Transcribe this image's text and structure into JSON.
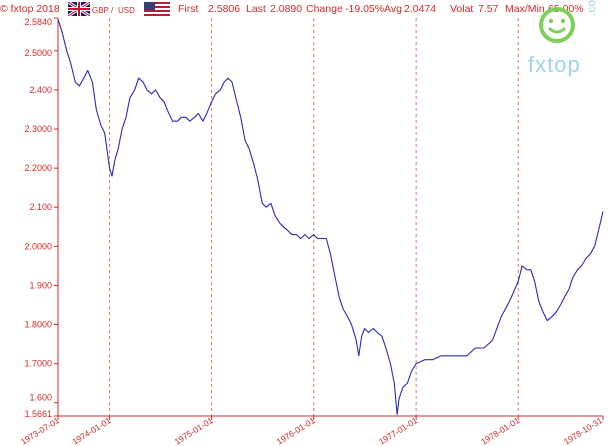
{
  "header": {
    "copyright": "© fxtop 2018",
    "pair_base": "GBP",
    "pair_sep": "/",
    "pair_quote": "USD",
    "first_label": "First",
    "first_value": "2.5806",
    "last_label": "Last",
    "last_value": "2.0890",
    "change_label": "Change",
    "change_value": "-19.05%",
    "avg_label": "Avg",
    "avg_value": "2.0474",
    "volat_label": "Volat",
    "volat_value": "7.57",
    "maxmin_label": "Max/Min",
    "maxmin_value": "65.00%"
  },
  "watermark": {
    "text": "fxtop",
    "suffix": ".com",
    "icon": "smiley-face-icon"
  },
  "colors": {
    "line": "#2a2ab8",
    "axis_text": "#d62828",
    "grid": "#e26a4a",
    "uk_flag_blue": "#012169",
    "uk_flag_red": "#c8102e",
    "us_flag_red": "#b22234",
    "us_flag_blue": "#3c3b6e",
    "watermark": "#9fd4e6",
    "watermark_green": "#7fd05a"
  },
  "chart_data": {
    "type": "line",
    "title": "",
    "xlabel": "",
    "ylabel": "",
    "ylim": [
      1.5661,
      2.584
    ],
    "y_ticks": [
      "1.5661",
      "1.600",
      "1.7000",
      "1.8000",
      "1.900",
      "2.0000",
      "2.100",
      "2.2000",
      "2.3000",
      "2.400",
      "2.5000",
      "2.5840"
    ],
    "y_tick_values": [
      1.5661,
      1.6,
      1.7,
      1.8,
      1.9,
      2.0,
      2.1,
      2.2,
      2.3,
      2.4,
      2.5,
      2.584
    ],
    "x_ticks": [
      "1973-07-01",
      "1974-01-01",
      "1975-01-01",
      "1976-01-01",
      "1977-01-01",
      "1978-01-01",
      "1978-10-31"
    ],
    "x_gridlines": [
      "1974-01-01",
      "1975-01-01",
      "1976-01-01",
      "1977-01-01",
      "1978-01-01"
    ],
    "grid": true,
    "series": [
      {
        "points": [
          [
            "1973-07-01",
            2.5806
          ],
          [
            "1973-07-15",
            2.55
          ],
          [
            "1973-08-01",
            2.5
          ],
          [
            "1973-08-15",
            2.47
          ],
          [
            "1973-09-01",
            2.42
          ],
          [
            "1973-09-15",
            2.41
          ],
          [
            "1973-10-01",
            2.43
          ],
          [
            "1973-10-15",
            2.45
          ],
          [
            "1973-11-01",
            2.42
          ],
          [
            "1973-11-15",
            2.35
          ],
          [
            "1973-12-01",
            2.31
          ],
          [
            "1973-12-15",
            2.29
          ],
          [
            "1974-01-01",
            2.2
          ],
          [
            "1974-01-10",
            2.18
          ],
          [
            "1974-01-20",
            2.22
          ],
          [
            "1974-02-01",
            2.25
          ],
          [
            "1974-02-15",
            2.3
          ],
          [
            "1974-03-01",
            2.33
          ],
          [
            "1974-03-15",
            2.38
          ],
          [
            "1974-04-01",
            2.4
          ],
          [
            "1974-04-15",
            2.43
          ],
          [
            "1974-05-01",
            2.42
          ],
          [
            "1974-05-15",
            2.4
          ],
          [
            "1974-06-01",
            2.39
          ],
          [
            "1974-06-15",
            2.4
          ],
          [
            "1974-07-01",
            2.38
          ],
          [
            "1974-07-15",
            2.37
          ],
          [
            "1974-08-01",
            2.34
          ],
          [
            "1974-08-15",
            2.32
          ],
          [
            "1974-09-01",
            2.32
          ],
          [
            "1974-09-15",
            2.33
          ],
          [
            "1974-10-01",
            2.33
          ],
          [
            "1974-10-15",
            2.32
          ],
          [
            "1974-11-01",
            2.33
          ],
          [
            "1974-11-15",
            2.34
          ],
          [
            "1974-12-01",
            2.32
          ],
          [
            "1974-12-15",
            2.34
          ],
          [
            "1975-01-01",
            2.37
          ],
          [
            "1975-01-15",
            2.39
          ],
          [
            "1975-02-01",
            2.4
          ],
          [
            "1975-02-15",
            2.42
          ],
          [
            "1975-03-01",
            2.43
          ],
          [
            "1975-03-15",
            2.42
          ],
          [
            "1975-04-01",
            2.37
          ],
          [
            "1975-04-15",
            2.33
          ],
          [
            "1975-05-01",
            2.27
          ],
          [
            "1975-05-15",
            2.25
          ],
          [
            "1975-06-01",
            2.21
          ],
          [
            "1975-06-15",
            2.17
          ],
          [
            "1975-07-01",
            2.11
          ],
          [
            "1975-07-15",
            2.1
          ],
          [
            "1975-08-01",
            2.11
          ],
          [
            "1975-08-15",
            2.08
          ],
          [
            "1975-09-01",
            2.06
          ],
          [
            "1975-09-15",
            2.05
          ],
          [
            "1975-10-01",
            2.04
          ],
          [
            "1975-10-15",
            2.03
          ],
          [
            "1975-11-01",
            2.03
          ],
          [
            "1975-11-15",
            2.02
          ],
          [
            "1975-12-01",
            2.03
          ],
          [
            "1975-12-15",
            2.02
          ],
          [
            "1976-01-01",
            2.03
          ],
          [
            "1976-01-15",
            2.02
          ],
          [
            "1976-02-01",
            2.02
          ],
          [
            "1976-02-15",
            2.02
          ],
          [
            "1976-03-01",
            1.98
          ],
          [
            "1976-03-15",
            1.93
          ],
          [
            "1976-04-01",
            1.87
          ],
          [
            "1976-04-15",
            1.84
          ],
          [
            "1976-05-01",
            1.82
          ],
          [
            "1976-05-15",
            1.8
          ],
          [
            "1976-06-01",
            1.76
          ],
          [
            "1976-06-10",
            1.72
          ],
          [
            "1976-06-20",
            1.77
          ],
          [
            "1976-07-01",
            1.79
          ],
          [
            "1976-07-15",
            1.78
          ],
          [
            "1976-08-01",
            1.79
          ],
          [
            "1976-08-15",
            1.78
          ],
          [
            "1976-09-01",
            1.77
          ],
          [
            "1976-09-15",
            1.74
          ],
          [
            "1976-10-01",
            1.7
          ],
          [
            "1976-10-15",
            1.65
          ],
          [
            "1976-10-25",
            1.57
          ],
          [
            "1976-11-01",
            1.61
          ],
          [
            "1976-11-15",
            1.64
          ],
          [
            "1976-12-01",
            1.65
          ],
          [
            "1976-12-15",
            1.68
          ],
          [
            "1977-01-01",
            1.7
          ],
          [
            "1977-02-01",
            1.71
          ],
          [
            "1977-03-01",
            1.71
          ],
          [
            "1977-04-01",
            1.72
          ],
          [
            "1977-05-01",
            1.72
          ],
          [
            "1977-06-01",
            1.72
          ],
          [
            "1977-07-01",
            1.72
          ],
          [
            "1977-08-01",
            1.74
          ],
          [
            "1977-09-01",
            1.74
          ],
          [
            "1977-10-01",
            1.76
          ],
          [
            "1977-11-01",
            1.82
          ],
          [
            "1977-12-01",
            1.86
          ],
          [
            "1978-01-01",
            1.91
          ],
          [
            "1978-01-15",
            1.95
          ],
          [
            "1978-02-01",
            1.94
          ],
          [
            "1978-02-15",
            1.94
          ],
          [
            "1978-03-01",
            1.91
          ],
          [
            "1978-03-15",
            1.86
          ],
          [
            "1978-04-01",
            1.83
          ],
          [
            "1978-04-15",
            1.81
          ],
          [
            "1978-05-01",
            1.82
          ],
          [
            "1978-05-15",
            1.83
          ],
          [
            "1978-06-01",
            1.85
          ],
          [
            "1978-06-15",
            1.87
          ],
          [
            "1978-07-01",
            1.89
          ],
          [
            "1978-07-15",
            1.92
          ],
          [
            "1978-08-01",
            1.94
          ],
          [
            "1978-08-15",
            1.95
          ],
          [
            "1978-09-01",
            1.97
          ],
          [
            "1978-09-15",
            1.98
          ],
          [
            "1978-10-01",
            2.0
          ],
          [
            "1978-10-15",
            2.04
          ],
          [
            "1978-10-31",
            2.089
          ]
        ]
      }
    ]
  }
}
